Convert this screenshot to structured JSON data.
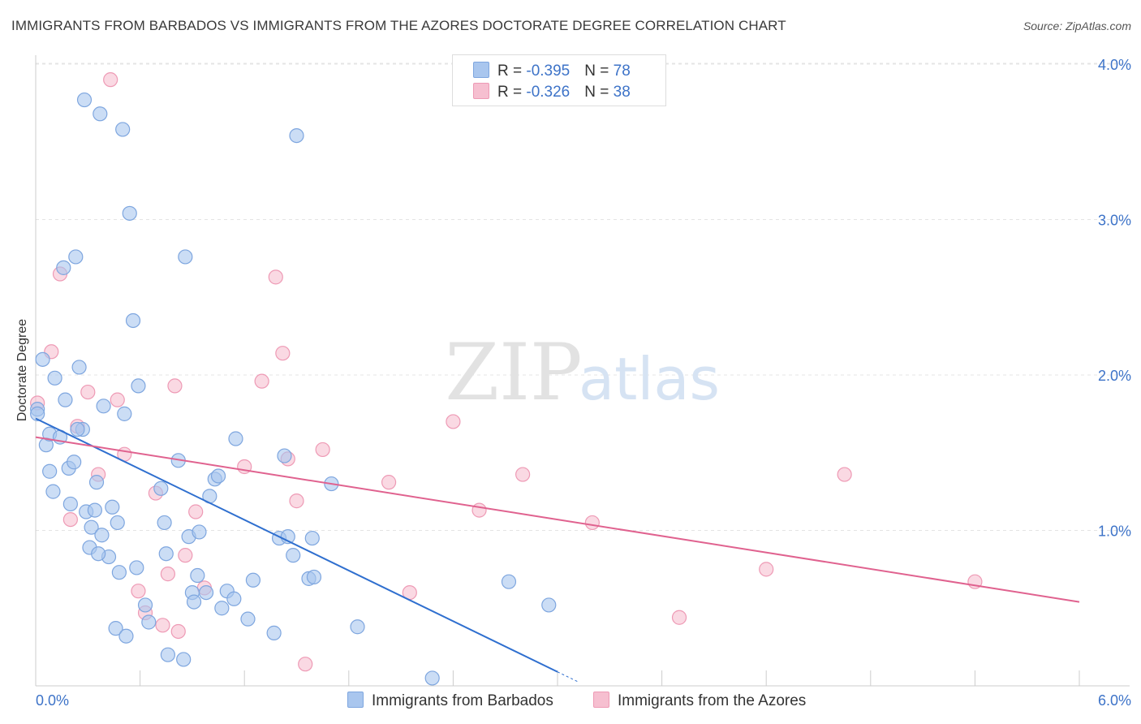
{
  "title": "IMMIGRANTS FROM BARBADOS VS IMMIGRANTS FROM THE AZORES DOCTORATE DEGREE CORRELATION CHART",
  "source": "Source: ZipAtlas.com",
  "watermark": {
    "zip": "ZIP",
    "atlas": "atlas"
  },
  "legend": {
    "barbados": {
      "r_label": "R = ",
      "r_value": "-0.395",
      "n_label": "N = ",
      "n_value": "78"
    },
    "azores": {
      "r_label": "R = ",
      "r_value": "-0.326",
      "n_label": "N = ",
      "n_value": "38"
    }
  },
  "colors": {
    "barbados_fill": "#a9c6ee",
    "barbados_stroke": "#7ea6df",
    "barbados_line": "#2f6fcf",
    "azores_fill": "#f6bfd0",
    "azores_stroke": "#ee9ab5",
    "azores_line": "#e0628f",
    "axis_text": "#3d73c8",
    "grid": "#e4e4e4"
  },
  "chart_data": {
    "type": "scatter",
    "title": "IMMIGRANTS FROM BARBADOS VS IMMIGRANTS FROM THE AZORES DOCTORATE DEGREE CORRELATION CHART",
    "xlabel": "",
    "ylabel": "Doctorate Degree",
    "xlim": [
      0,
      6
    ],
    "ylim": [
      0,
      4.1
    ],
    "x_tick_labels": [
      "0.0%",
      "6.0%"
    ],
    "y_ticks": [
      1.0,
      2.0,
      3.0,
      4.0
    ],
    "y_tick_labels": [
      "1.0%",
      "2.0%",
      "3.0%",
      "4.0%"
    ],
    "grid": true,
    "legend_position": "top-center",
    "series": [
      {
        "name": "Immigrants from Barbados",
        "color": "#a9c6ee",
        "trend": {
          "x": [
            0.0,
            3.0
          ],
          "y": [
            1.72,
            0.09
          ]
        },
        "points": [
          {
            "x": 0.01,
            "y": 1.78
          },
          {
            "x": 0.01,
            "y": 1.75
          },
          {
            "x": 0.04,
            "y": 2.1
          },
          {
            "x": 0.06,
            "y": 1.55
          },
          {
            "x": 0.08,
            "y": 1.62
          },
          {
            "x": 0.08,
            "y": 1.38
          },
          {
            "x": 0.1,
            "y": 1.25
          },
          {
            "x": 0.11,
            "y": 1.98
          },
          {
            "x": 0.14,
            "y": 1.6
          },
          {
            "x": 0.16,
            "y": 2.69
          },
          {
            "x": 0.17,
            "y": 1.84
          },
          {
            "x": 0.19,
            "y": 1.4
          },
          {
            "x": 0.2,
            "y": 1.17
          },
          {
            "x": 0.22,
            "y": 1.44
          },
          {
            "x": 0.23,
            "y": 2.76
          },
          {
            "x": 0.25,
            "y": 2.05
          },
          {
            "x": 0.27,
            "y": 1.65
          },
          {
            "x": 0.28,
            "y": 3.77
          },
          {
            "x": 0.29,
            "y": 1.12
          },
          {
            "x": 0.31,
            "y": 0.89
          },
          {
            "x": 0.32,
            "y": 1.02
          },
          {
            "x": 0.34,
            "y": 1.13
          },
          {
            "x": 0.35,
            "y": 1.31
          },
          {
            "x": 0.37,
            "y": 3.68
          },
          {
            "x": 0.38,
            "y": 0.97
          },
          {
            "x": 0.39,
            "y": 1.8
          },
          {
            "x": 0.42,
            "y": 0.83
          },
          {
            "x": 0.44,
            "y": 1.15
          },
          {
            "x": 0.46,
            "y": 0.37
          },
          {
            "x": 0.47,
            "y": 1.05
          },
          {
            "x": 0.48,
            "y": 0.73
          },
          {
            "x": 0.5,
            "y": 3.58
          },
          {
            "x": 0.51,
            "y": 1.75
          },
          {
            "x": 0.52,
            "y": 0.32
          },
          {
            "x": 0.54,
            "y": 3.04
          },
          {
            "x": 0.56,
            "y": 2.35
          },
          {
            "x": 0.58,
            "y": 0.76
          },
          {
            "x": 0.59,
            "y": 1.93
          },
          {
            "x": 0.63,
            "y": 0.52
          },
          {
            "x": 0.65,
            "y": 0.41
          },
          {
            "x": 0.72,
            "y": 1.27
          },
          {
            "x": 0.74,
            "y": 1.05
          },
          {
            "x": 0.75,
            "y": 0.85
          },
          {
            "x": 0.76,
            "y": 0.2
          },
          {
            "x": 0.82,
            "y": 1.45
          },
          {
            "x": 0.85,
            "y": 0.17
          },
          {
            "x": 0.86,
            "y": 2.76
          },
          {
            "x": 0.88,
            "y": 0.96
          },
          {
            "x": 0.9,
            "y": 0.6
          },
          {
            "x": 0.91,
            "y": 0.54
          },
          {
            "x": 0.93,
            "y": 0.71
          },
          {
            "x": 0.94,
            "y": 0.99
          },
          {
            "x": 0.98,
            "y": 0.6
          },
          {
            "x": 1.0,
            "y": 1.22
          },
          {
            "x": 1.03,
            "y": 1.33
          },
          {
            "x": 1.05,
            "y": 1.35
          },
          {
            "x": 1.07,
            "y": 0.5
          },
          {
            "x": 1.1,
            "y": 0.61
          },
          {
            "x": 1.14,
            "y": 0.56
          },
          {
            "x": 1.15,
            "y": 1.59
          },
          {
            "x": 1.22,
            "y": 0.43
          },
          {
            "x": 1.25,
            "y": 0.68
          },
          {
            "x": 1.37,
            "y": 0.34
          },
          {
            "x": 1.4,
            "y": 0.95
          },
          {
            "x": 1.43,
            "y": 1.48
          },
          {
            "x": 1.45,
            "y": 0.96
          },
          {
            "x": 1.48,
            "y": 0.84
          },
          {
            "x": 1.5,
            "y": 3.54
          },
          {
            "x": 1.57,
            "y": 0.69
          },
          {
            "x": 1.59,
            "y": 0.95
          },
          {
            "x": 1.6,
            "y": 0.7
          },
          {
            "x": 1.7,
            "y": 1.3
          },
          {
            "x": 1.85,
            "y": 0.38
          },
          {
            "x": 2.28,
            "y": 0.05
          },
          {
            "x": 2.72,
            "y": 0.67
          },
          {
            "x": 2.95,
            "y": 0.52
          },
          {
            "x": 0.24,
            "y": 1.65
          },
          {
            "x": 0.36,
            "y": 0.85
          }
        ]
      },
      {
        "name": "Immigrants from the Azores",
        "color": "#f6bfd0",
        "trend": {
          "x": [
            0.0,
            6.0
          ],
          "y": [
            1.6,
            0.54
          ]
        },
        "points": [
          {
            "x": 0.01,
            "y": 1.82
          },
          {
            "x": 0.09,
            "y": 2.15
          },
          {
            "x": 0.14,
            "y": 2.65
          },
          {
            "x": 0.2,
            "y": 1.07
          },
          {
            "x": 0.24,
            "y": 1.67
          },
          {
            "x": 0.3,
            "y": 1.89
          },
          {
            "x": 0.36,
            "y": 1.36
          },
          {
            "x": 0.43,
            "y": 3.9
          },
          {
            "x": 0.47,
            "y": 1.84
          },
          {
            "x": 0.51,
            "y": 1.49
          },
          {
            "x": 0.59,
            "y": 0.61
          },
          {
            "x": 0.63,
            "y": 0.47
          },
          {
            "x": 0.69,
            "y": 1.24
          },
          {
            "x": 0.73,
            "y": 0.39
          },
          {
            "x": 0.76,
            "y": 0.72
          },
          {
            "x": 0.8,
            "y": 1.93
          },
          {
            "x": 0.82,
            "y": 0.35
          },
          {
            "x": 0.86,
            "y": 0.84
          },
          {
            "x": 0.92,
            "y": 1.12
          },
          {
            "x": 0.97,
            "y": 0.63
          },
          {
            "x": 1.2,
            "y": 1.41
          },
          {
            "x": 1.3,
            "y": 1.96
          },
          {
            "x": 1.38,
            "y": 2.63
          },
          {
            "x": 1.42,
            "y": 2.14
          },
          {
            "x": 1.45,
            "y": 1.46
          },
          {
            "x": 1.5,
            "y": 1.19
          },
          {
            "x": 1.55,
            "y": 0.14
          },
          {
            "x": 1.65,
            "y": 1.52
          },
          {
            "x": 2.03,
            "y": 1.31
          },
          {
            "x": 2.15,
            "y": 0.6
          },
          {
            "x": 2.4,
            "y": 1.7
          },
          {
            "x": 2.55,
            "y": 1.13
          },
          {
            "x": 2.8,
            "y": 1.36
          },
          {
            "x": 3.2,
            "y": 1.05
          },
          {
            "x": 3.7,
            "y": 0.44
          },
          {
            "x": 4.2,
            "y": 0.75
          },
          {
            "x": 4.65,
            "y": 1.36
          },
          {
            "x": 5.4,
            "y": 0.67
          }
        ]
      }
    ]
  }
}
